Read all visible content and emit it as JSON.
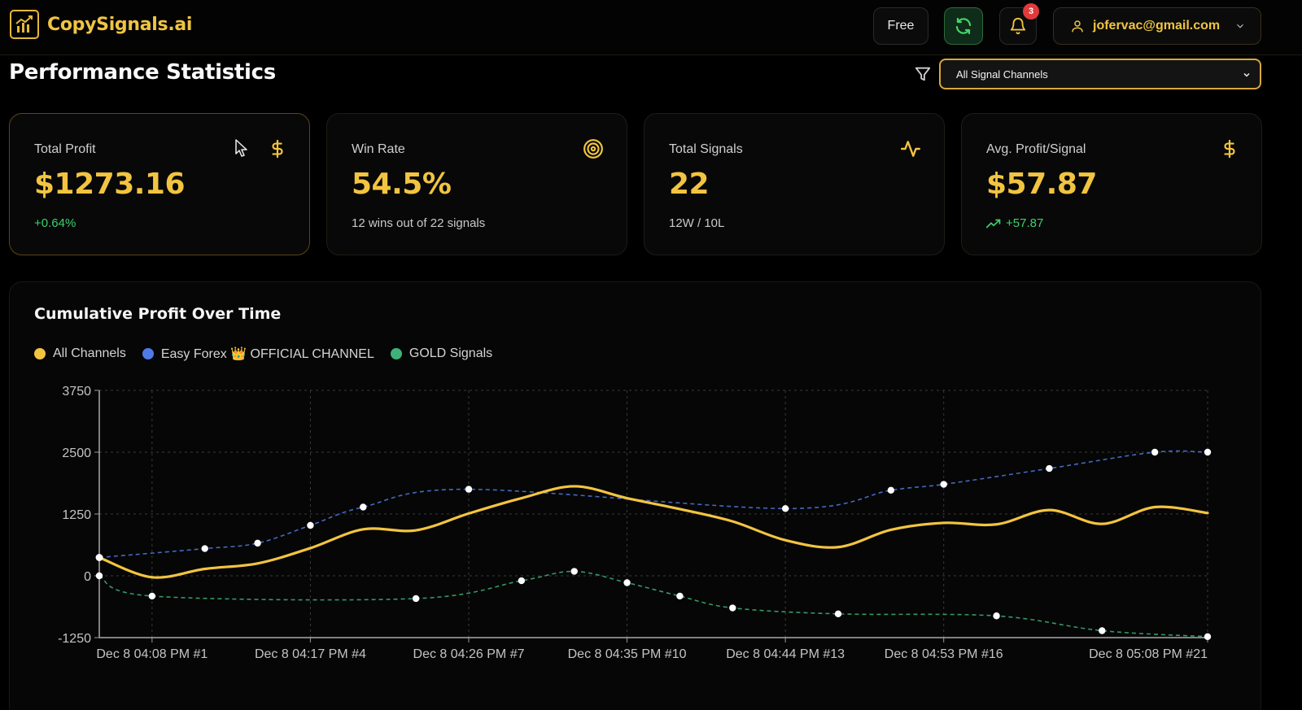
{
  "brand": {
    "name": "CopySignals.ai",
    "color": "#f0c443"
  },
  "header": {
    "plan_label": "Free",
    "notifications_count": "3",
    "user_email": "jofervac@gmail.com"
  },
  "page": {
    "title": "Performance Statistics",
    "channel_filter_value": "All Signal Channels"
  },
  "cards": [
    {
      "label": "Total Profit",
      "value": "$1273.16",
      "sub": "+0.64%",
      "icon": "dollar-icon"
    },
    {
      "label": "Win Rate",
      "value": "54.5%",
      "sub": "12 wins out of 22 signals",
      "icon": "target-icon"
    },
    {
      "label": "Total Signals",
      "value": "22",
      "sub": "12W / 10L",
      "icon": "activity-icon"
    },
    {
      "label": "Avg. Profit/Signal",
      "value": "$57.87",
      "sub": "+57.87",
      "icon": "dollar-icon"
    }
  ],
  "chart": {
    "title": "Cumulative Profit Over Time",
    "legend": [
      {
        "name": "All Channels",
        "color": "#f2c440"
      },
      {
        "name": "Easy Forex 👑 OFFICIAL CHANNEL",
        "color": "#4f7be8"
      },
      {
        "name": "GOLD Signals",
        "color": "#3db37a"
      }
    ]
  },
  "chart_data": {
    "type": "line",
    "title": "Cumulative Profit Over Time",
    "xlabel": "",
    "ylabel": "",
    "ylim": [
      -1250,
      3750
    ],
    "yticks": [
      -1250,
      0,
      1250,
      2500,
      3750
    ],
    "x_tick_labels": [
      "Dec 8 04:08 PM #1",
      "Dec 8 04:17 PM #4",
      "Dec 8 04:26 PM #7",
      "Dec 8 04:35 PM #10",
      "Dec 8 04:44 PM #13",
      "Dec 8 04:53 PM #16",
      "Dec 8 05:08 PM #21"
    ],
    "x_tick_index": [
      1,
      4,
      7,
      10,
      13,
      16,
      21
    ],
    "x_count": 22,
    "grid": true,
    "legend_position": "top-left",
    "series": [
      {
        "name": "All Channels",
        "color": "#f2c440",
        "style": "solid",
        "values": [
          370,
          -30,
          140,
          250,
          560,
          940,
          920,
          1260,
          1570,
          1810,
          1570,
          1350,
          1100,
          720,
          580,
          930,
          1070,
          1040,
          1330,
          1050,
          1390,
          1270
        ]
      },
      {
        "name": "Easy Forex 👑 OFFICIAL CHANNEL",
        "color": "#4f7be8",
        "style": "dashed",
        "points": [
          [
            0,
            370
          ],
          [
            2,
            550
          ],
          [
            3,
            660
          ],
          [
            4,
            1020
          ],
          [
            5,
            1390
          ],
          [
            7,
            1750
          ],
          [
            13,
            1360
          ],
          [
            15,
            1730
          ],
          [
            16,
            1850
          ],
          [
            18,
            2170
          ],
          [
            20,
            2500
          ],
          [
            21,
            2500
          ]
        ]
      },
      {
        "name": "GOLD Signals",
        "color": "#3db37a",
        "style": "dashed",
        "points": [
          [
            0,
            0
          ],
          [
            1,
            -410
          ],
          [
            6,
            -460
          ],
          [
            8,
            -100
          ],
          [
            9,
            90
          ],
          [
            10,
            -140
          ],
          [
            11,
            -410
          ],
          [
            12,
            -650
          ],
          [
            14,
            -770
          ],
          [
            17,
            -810
          ],
          [
            19,
            -1110
          ],
          [
            21,
            -1230
          ]
        ]
      }
    ]
  }
}
